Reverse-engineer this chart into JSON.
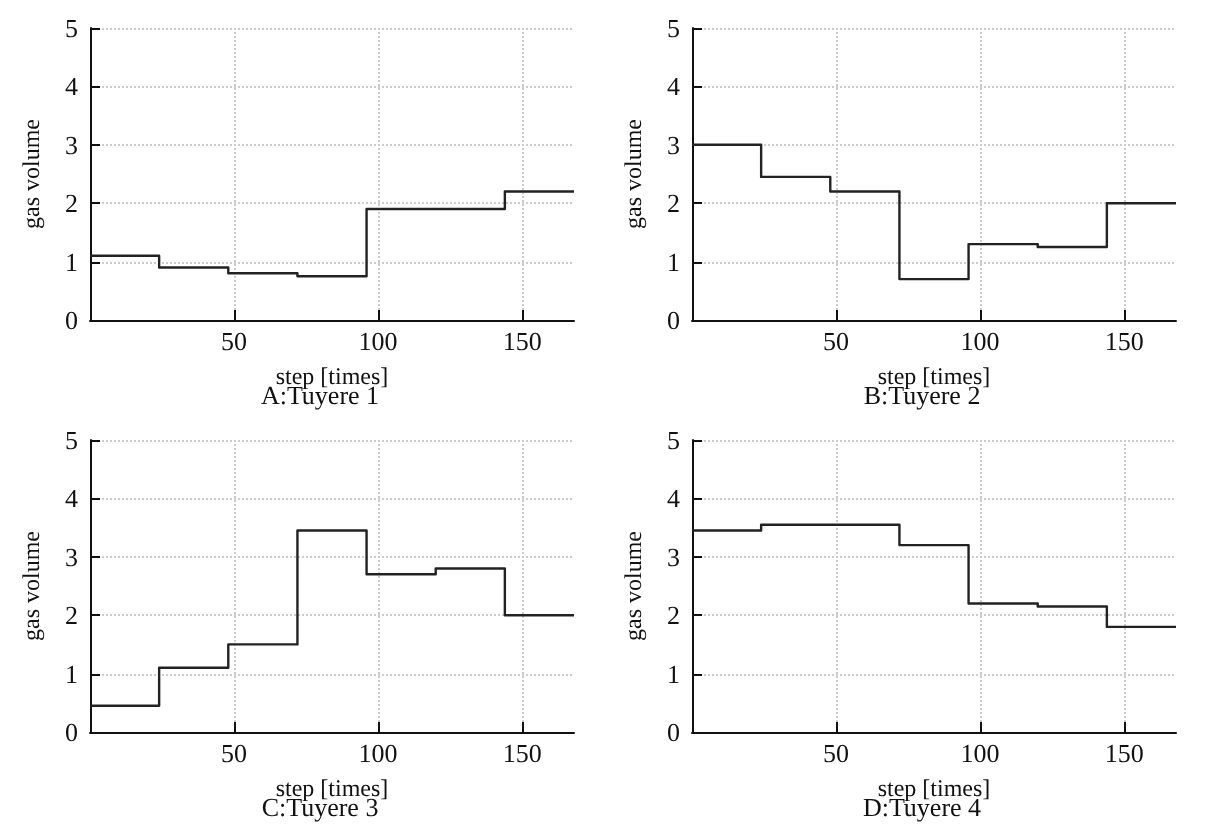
{
  "chart_data": [
    {
      "type": "step",
      "title": "A:Tuyere 1",
      "xlabel": "step [times]",
      "ylabel": "gas volume",
      "x": [
        0,
        24,
        48,
        72,
        96,
        120,
        144,
        168
      ],
      "xlim": [
        0,
        168
      ],
      "xticks": [
        50,
        100,
        150
      ],
      "ylim": [
        0,
        5
      ],
      "yticks": [
        0,
        1,
        2,
        3,
        4,
        5
      ],
      "grid": true,
      "marker": "none",
      "line_style": "solid",
      "series": [
        {
          "color": "#222222",
          "values": [
            1.1,
            0.9,
            0.8,
            0.75,
            1.9,
            1.9,
            2.2,
            2.2
          ]
        }
      ]
    },
    {
      "type": "step",
      "title": "B:Tuyere 2",
      "xlabel": "step [times]",
      "ylabel": "gas volume",
      "x": [
        0,
        24,
        48,
        72,
        96,
        120,
        144,
        168
      ],
      "xlim": [
        0,
        168
      ],
      "xticks": [
        50,
        100,
        150
      ],
      "ylim": [
        0,
        5
      ],
      "yticks": [
        0,
        1,
        2,
        3,
        4,
        5
      ],
      "grid": true,
      "marker": "none",
      "line_style": "solid",
      "series": [
        {
          "color": "#222222",
          "values": [
            3.0,
            2.45,
            2.2,
            0.7,
            1.3,
            1.25,
            2.0,
            2.0
          ]
        }
      ]
    },
    {
      "type": "step",
      "title": "C:Tuyere 3",
      "xlabel": "step [times]",
      "ylabel": "gas volume",
      "x": [
        0,
        24,
        48,
        72,
        96,
        120,
        144,
        168
      ],
      "xlim": [
        0,
        168
      ],
      "xticks": [
        50,
        100,
        150
      ],
      "ylim": [
        0,
        5
      ],
      "yticks": [
        0,
        1,
        2,
        3,
        4,
        5
      ],
      "grid": true,
      "marker": "none",
      "line_style": "solid",
      "series": [
        {
          "color": "#222222",
          "values": [
            0.45,
            1.1,
            1.5,
            3.45,
            2.7,
            2.8,
            2.0,
            2.0
          ]
        }
      ]
    },
    {
      "type": "step",
      "title": "D:Tuyere 4",
      "xlabel": "step [times]",
      "ylabel": "gas volume",
      "x": [
        0,
        24,
        48,
        72,
        96,
        120,
        144,
        168
      ],
      "xlim": [
        0,
        168
      ],
      "xticks": [
        50,
        100,
        150
      ],
      "ylim": [
        0,
        5
      ],
      "yticks": [
        0,
        1,
        2,
        3,
        4,
        5
      ],
      "grid": true,
      "marker": "none",
      "line_style": "solid",
      "series": [
        {
          "color": "#222222",
          "values": [
            3.45,
            3.55,
            3.55,
            3.2,
            2.2,
            2.15,
            1.8,
            1.8
          ]
        }
      ]
    }
  ]
}
